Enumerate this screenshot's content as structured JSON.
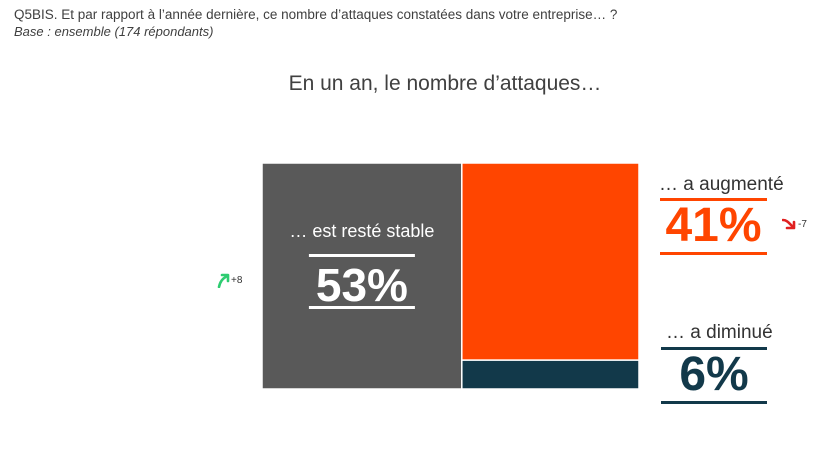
{
  "header": {
    "question": "Q5BIS. Et par rapport à l’année dernière, ce nombre d’attaques constatées dans votre entreprise… ?",
    "base": "Base : ensemble (174 répondants)"
  },
  "chart_data": {
    "type": "treemap",
    "title": "En un an, le nombre d’attaques…",
    "segments": [
      {
        "label": "… est resté stable",
        "value": 53,
        "display": "53%",
        "color": "#595959",
        "trend": "+8",
        "trend_direction": "up",
        "trend_color": "#2ecc71"
      },
      {
        "label": "… a augmenté",
        "value": 41,
        "display": "41%",
        "color": "#ff4500",
        "trend": "-7",
        "trend_direction": "down",
        "trend_color": "#e02020"
      },
      {
        "label": "… a diminué",
        "value": 6,
        "display": "6%",
        "color": "#12394a"
      }
    ]
  }
}
